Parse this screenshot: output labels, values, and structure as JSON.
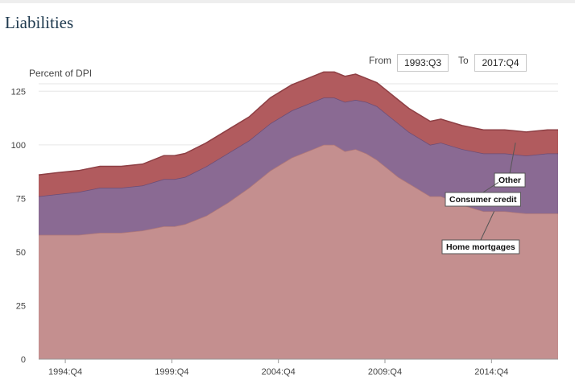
{
  "page": {
    "title": "Liabilities"
  },
  "range": {
    "from_label": "From",
    "from_value": "1993:Q3",
    "to_label": "To",
    "to_value": "2017:Q4"
  },
  "colors": {
    "home_mortgages": "#c48f8f",
    "consumer_credit": "#8a6a93",
    "other": "#b15b5e",
    "grid": "#e6e6e6"
  },
  "chart_data": {
    "type": "area",
    "stacked": true,
    "title": "Liabilities",
    "ylabel": "Percent of DPI",
    "xlabel": "",
    "ylim": [
      0,
      130
    ],
    "yticks": [
      0,
      25,
      50,
      75,
      100,
      125
    ],
    "x_start": 1993.625,
    "x_end": 2018.0,
    "xticks": [
      {
        "label": "1994:Q4",
        "value": 1994.875
      },
      {
        "label": "1999:Q4",
        "value": 1999.875
      },
      {
        "label": "2004:Q4",
        "value": 2004.875
      },
      {
        "label": "2009:Q4",
        "value": 2009.875
      },
      {
        "label": "2014:Q4",
        "value": 2014.875
      }
    ],
    "x": [
      1993.625,
      1994.5,
      1995.5,
      1996.5,
      1997.5,
      1998.5,
      1999.5,
      2000.0,
      2000.5,
      2001.5,
      2002.5,
      2003.5,
      2004.5,
      2005.5,
      2006.5,
      2007.0,
      2007.5,
      2008.0,
      2008.5,
      2009.0,
      2009.5,
      2010.0,
      2010.5,
      2011.0,
      2011.5,
      2012.0,
      2012.5,
      2013.5,
      2014.5,
      2015.5,
      2016.5,
      2017.5,
      2018.0
    ],
    "series": [
      {
        "name": "Home mortgages",
        "values": [
          58,
          58,
          58,
          59,
          59,
          60,
          62,
          62,
          63,
          67,
          73,
          80,
          88,
          94,
          98,
          100,
          100,
          97,
          98,
          96,
          93,
          89,
          85,
          82,
          79,
          76,
          76,
          72,
          69,
          69,
          68,
          68,
          68
        ]
      },
      {
        "name": "Consumer credit",
        "values": [
          18,
          19,
          20,
          21,
          21,
          21,
          22,
          22,
          22,
          23,
          23,
          22,
          22,
          22,
          22,
          22,
          22,
          23,
          23,
          24,
          25,
          25,
          25,
          24,
          24,
          24,
          25,
          26,
          27,
          27,
          27,
          28,
          28
        ]
      },
      {
        "name": "Other",
        "values": [
          10,
          10,
          10,
          10,
          10,
          10,
          11,
          11,
          11,
          11,
          11,
          11,
          12,
          12,
          12,
          12,
          12,
          12,
          12,
          11,
          11,
          11,
          11,
          11,
          11,
          11,
          11,
          11,
          11,
          11,
          11,
          11,
          11
        ]
      }
    ],
    "annotations": [
      {
        "label": "Other",
        "series": "Other"
      },
      {
        "label": "Consumer credit",
        "series": "Consumer credit"
      },
      {
        "label": "Home mortgages",
        "series": "Home mortgages"
      }
    ]
  }
}
